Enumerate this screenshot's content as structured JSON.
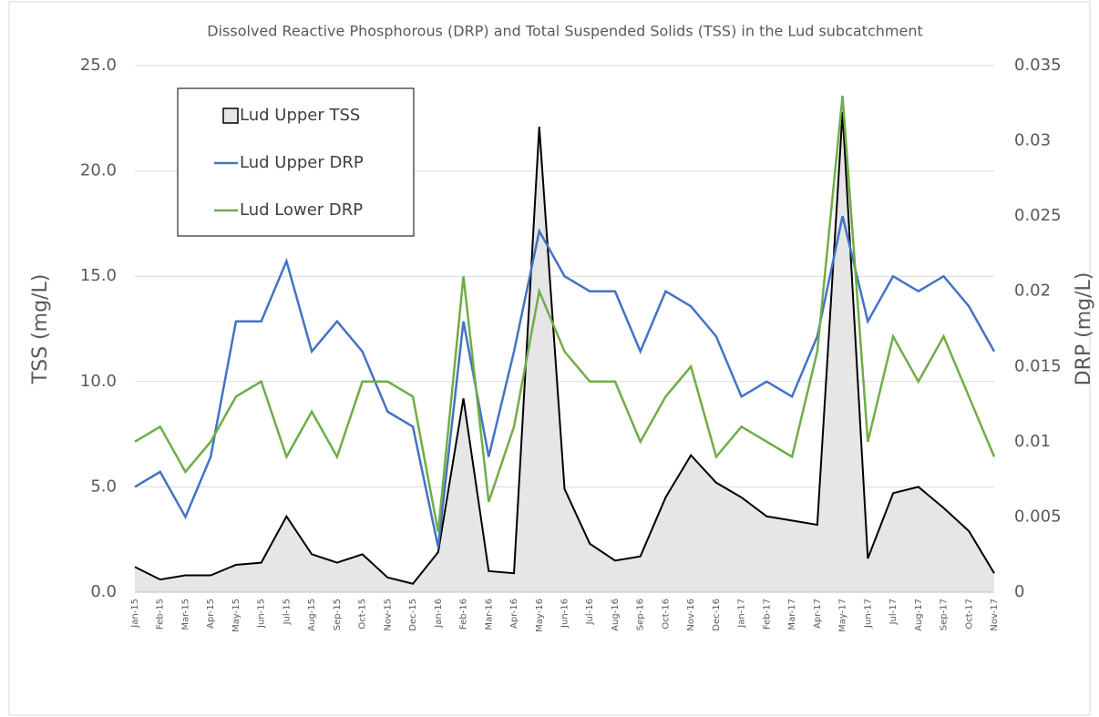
{
  "chart_data": {
    "type": "line",
    "title": "Dissolved Reactive Phosphorous (DRP) and Total Suspended Solids (TSS) in the Lud subcatchment",
    "y_label": "TSS (mg/L)",
    "y2_label": "DRP (mg/L)",
    "categories": [
      "Jan-15",
      "Feb-15",
      "Mar-15",
      "Apr-15",
      "May-15",
      "Jun-15",
      "Jul-15",
      "Aug-15",
      "Sep-15",
      "Oct-15",
      "Nov-15",
      "Dec-15",
      "Jan-16",
      "Feb-16",
      "Mar-16",
      "Apr-16",
      "May-16",
      "Jun-16",
      "Jul-16",
      "Aug-16",
      "Sep-16",
      "Oct-16",
      "Nov-16",
      "Dec-16",
      "Jan-17",
      "Feb-17",
      "Mar-17",
      "Apr-17",
      "May-17",
      "Jun-17",
      "Jul-17",
      "Aug-17",
      "Sep-17",
      "Oct-17",
      "Nov-17"
    ],
    "series": [
      {
        "name": "Lud Upper TSS",
        "type": "area",
        "color": "#000000",
        "fill": "#e6e6e6",
        "axis": "y",
        "values": [
          1.2,
          0.6,
          0.8,
          0.8,
          1.3,
          1.4,
          3.6,
          1.8,
          1.4,
          1.8,
          0.7,
          0.4,
          1.9,
          9.2,
          1.0,
          0.9,
          22.1,
          4.9,
          2.3,
          1.5,
          1.7,
          4.5,
          6.5,
          5.2,
          4.5,
          3.6,
          3.4,
          3.2,
          22.8,
          1.6,
          4.7,
          5.0,
          4.0,
          2.9,
          0.9
        ]
      },
      {
        "name": "Lud Upper DRP",
        "type": "line",
        "color": "#4472c4",
        "axis": "y2",
        "values": [
          0.007,
          0.008,
          0.005,
          0.009,
          0.018,
          0.018,
          0.022,
          0.016,
          0.018,
          0.016,
          0.012,
          0.011,
          0.003,
          0.018,
          0.009,
          0.016,
          0.024,
          0.021,
          0.02,
          0.02,
          0.016,
          0.02,
          0.019,
          0.017,
          0.013,
          0.014,
          0.013,
          0.017,
          0.025,
          0.018,
          0.021,
          0.02,
          0.021,
          0.019,
          0.016
        ]
      },
      {
        "name": "Lud Lower DRP",
        "type": "line",
        "color": "#70ad47",
        "axis": "y2",
        "values": [
          0.01,
          0.011,
          0.008,
          0.01,
          0.013,
          0.014,
          0.009,
          0.012,
          0.009,
          0.014,
          0.014,
          0.013,
          0.004,
          0.021,
          0.006,
          0.011,
          0.02,
          0.016,
          0.014,
          0.014,
          0.01,
          0.013,
          0.015,
          0.009,
          0.011,
          0.01,
          0.009,
          0.016,
          0.033,
          0.01,
          0.017,
          0.014,
          0.017,
          0.013,
          0.009
        ]
      }
    ],
    "ylim": [
      0,
      25
    ],
    "yticks": [
      {
        "value": 0,
        "label": "0.0"
      },
      {
        "value": 5,
        "label": "5.0"
      },
      {
        "value": 10,
        "label": "10.0"
      },
      {
        "value": 15,
        "label": "15.0"
      },
      {
        "value": 20,
        "label": "20.0"
      },
      {
        "value": 25,
        "label": "25.0"
      }
    ],
    "y2lim": [
      0,
      0.035
    ],
    "y2ticks": [
      0,
      0.005,
      0.01,
      0.015,
      0.02,
      0.025,
      0.03,
      0.035
    ],
    "grid": true,
    "legend": "upper left"
  }
}
